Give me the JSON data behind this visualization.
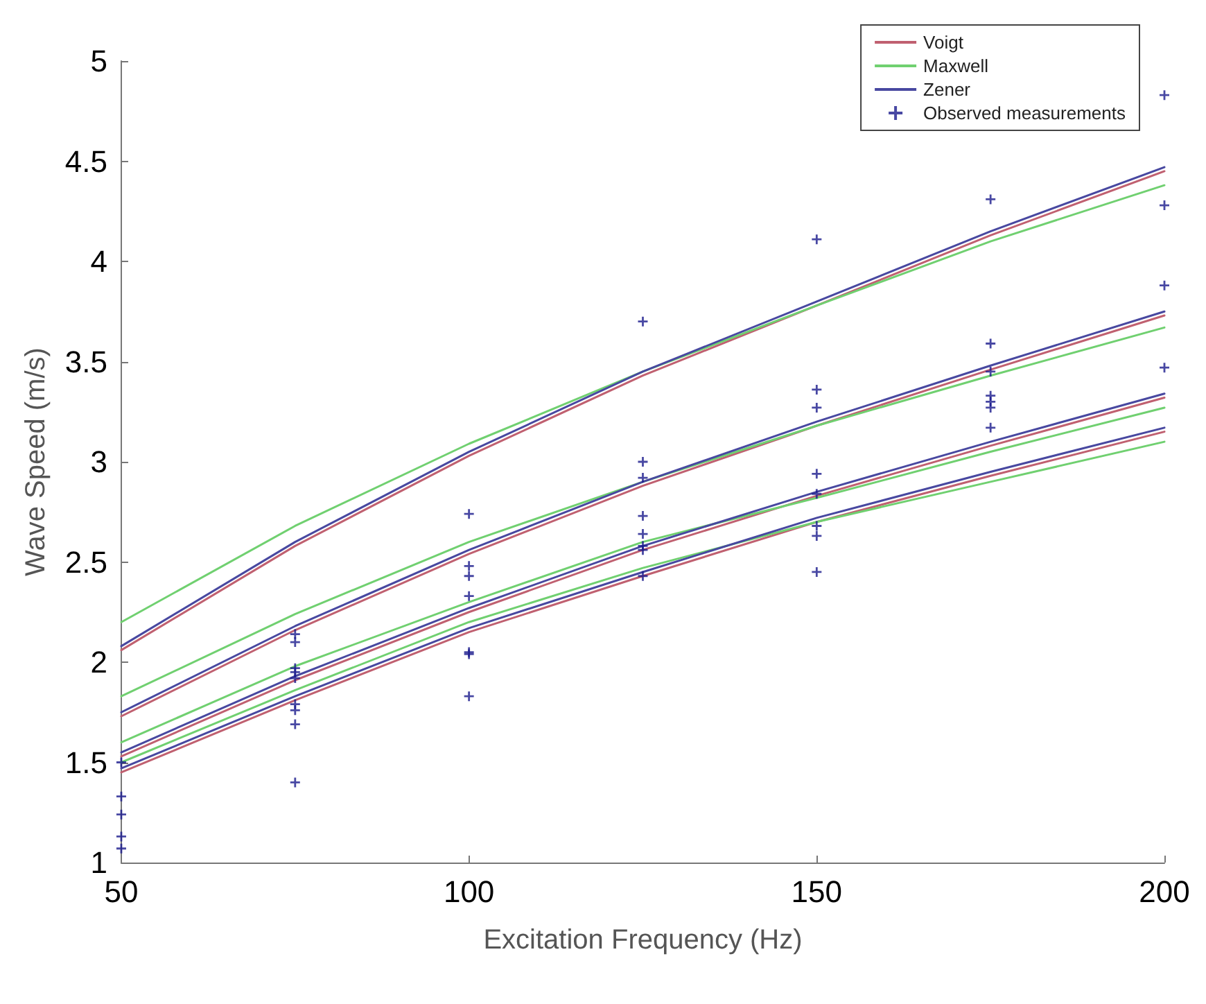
{
  "chart_data": {
    "type": "line",
    "xlabel": "Excitation Frequency (Hz)",
    "ylabel": "Wave Speed (m/s)",
    "xlim": [
      50,
      200
    ],
    "ylim": [
      1,
      5
    ],
    "xticks": [
      50,
      100,
      150,
      200
    ],
    "yticks": [
      1,
      1.5,
      2,
      2.5,
      3,
      3.5,
      4,
      4.5,
      5
    ],
    "grid": false,
    "legend": "top right",
    "x": [
      50,
      75,
      100,
      125,
      150,
      175,
      200
    ],
    "series": [
      {
        "name": "Voigt",
        "color": "#c06070",
        "values": [
          2.06,
          2.58,
          3.03,
          3.43,
          3.78,
          4.13,
          4.45
        ]
      },
      {
        "color": "#c06070",
        "values": [
          1.73,
          2.16,
          2.54,
          2.88,
          3.18,
          3.46,
          3.73
        ]
      },
      {
        "color": "#c06070",
        "values": [
          1.53,
          1.91,
          2.25,
          2.56,
          2.83,
          3.08,
          3.32
        ]
      },
      {
        "color": "#c06070",
        "values": [
          1.45,
          1.81,
          2.15,
          2.43,
          2.7,
          2.93,
          3.15
        ]
      },
      {
        "name": "Maxwell",
        "color": "#70d070",
        "values": [
          2.2,
          2.68,
          3.09,
          3.45,
          3.78,
          4.1,
          4.38
        ]
      },
      {
        "color": "#70d070",
        "values": [
          1.83,
          2.24,
          2.6,
          2.9,
          3.18,
          3.43,
          3.67
        ]
      },
      {
        "color": "#70d070",
        "values": [
          1.6,
          1.98,
          2.3,
          2.6,
          2.82,
          3.05,
          3.27
        ]
      },
      {
        "color": "#70d070",
        "values": [
          1.5,
          1.86,
          2.2,
          2.47,
          2.7,
          2.9,
          3.1
        ]
      },
      {
        "name": "Zener",
        "color": "#4848a0",
        "values": [
          2.08,
          2.6,
          3.05,
          3.45,
          3.8,
          4.15,
          4.47
        ]
      },
      {
        "color": "#4848a0",
        "values": [
          1.75,
          2.18,
          2.56,
          2.9,
          3.2,
          3.48,
          3.75
        ]
      },
      {
        "color": "#4848a0",
        "values": [
          1.55,
          1.93,
          2.27,
          2.58,
          2.85,
          3.1,
          3.34
        ]
      },
      {
        "color": "#4848a0",
        "values": [
          1.47,
          1.83,
          2.17,
          2.45,
          2.72,
          2.95,
          3.17
        ]
      },
      {
        "name": "Observed measurements",
        "type": "scatter",
        "marker": "cross",
        "color": "#1a1a8c",
        "x": [
          50,
          50,
          50,
          50,
          50,
          75,
          75,
          75,
          75,
          75,
          75,
          75,
          75,
          75,
          100,
          100,
          100,
          100,
          100,
          100,
          100,
          125,
          125,
          125,
          125,
          125,
          125,
          125,
          125,
          150,
          150,
          150,
          150,
          150,
          150,
          150,
          150,
          175,
          175,
          175,
          175,
          175,
          175,
          175,
          200,
          200,
          200,
          200
        ],
        "values": [
          1.5,
          1.33,
          1.24,
          1.13,
          1.07,
          2.14,
          2.1,
          1.97,
          1.95,
          1.92,
          1.79,
          1.76,
          1.69,
          1.4,
          2.74,
          2.48,
          2.43,
          2.33,
          2.05,
          2.04,
          1.83,
          3.7,
          3.0,
          2.92,
          2.73,
          2.64,
          2.58,
          2.56,
          2.43,
          4.11,
          3.36,
          3.27,
          2.94,
          2.84,
          2.68,
          2.63,
          2.45,
          4.31,
          3.59,
          3.45,
          3.33,
          3.3,
          3.27,
          3.17,
          4.83,
          4.28,
          3.88,
          3.47
        ]
      }
    ]
  }
}
